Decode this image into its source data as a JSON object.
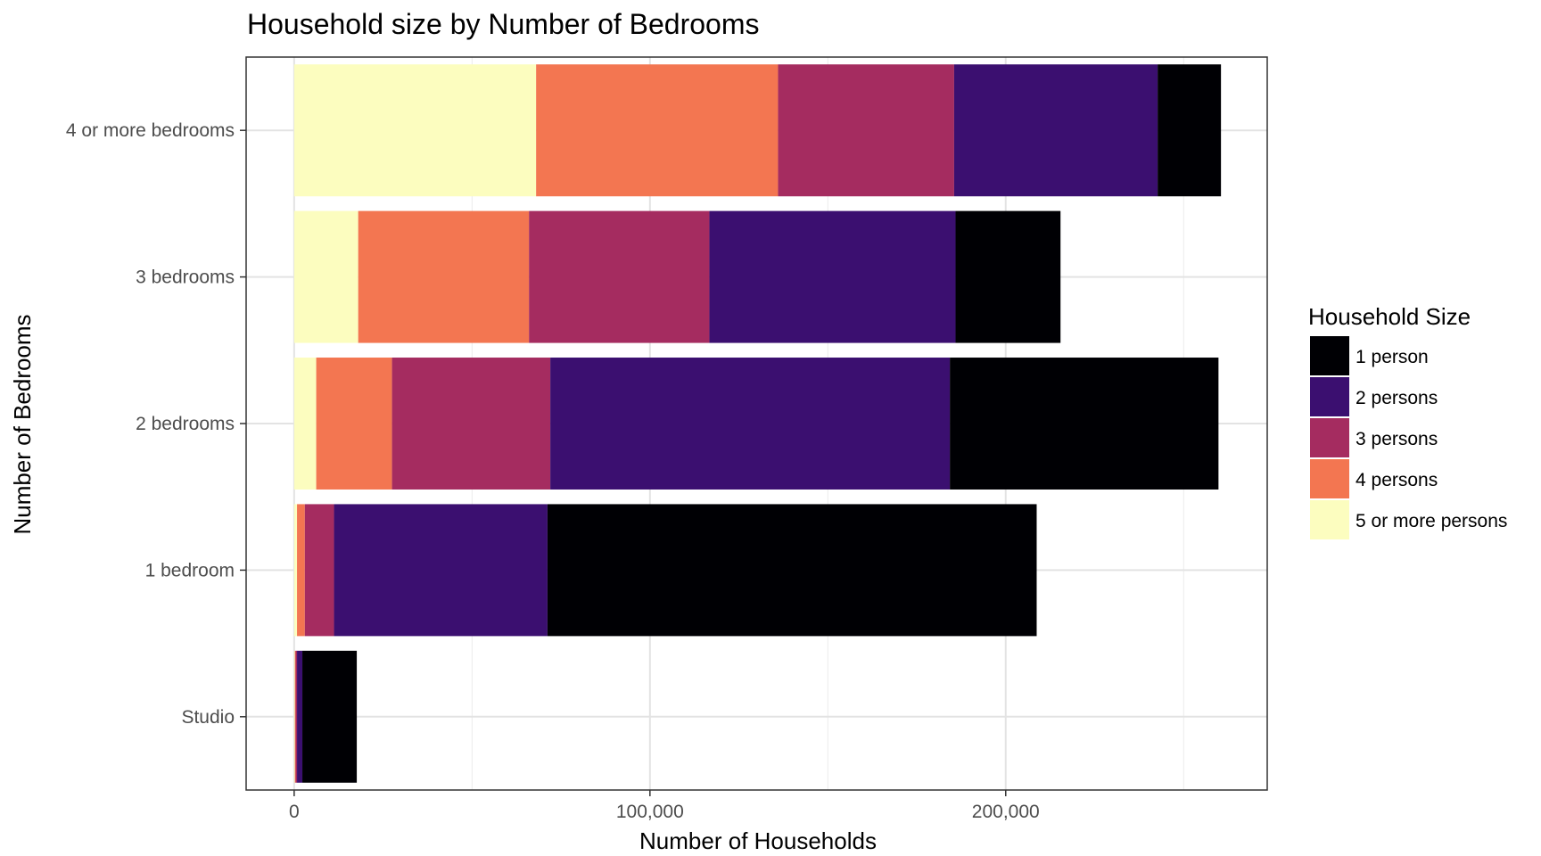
{
  "chart_data": {
    "type": "bar",
    "orientation": "horizontal",
    "stacked": true,
    "title": "Household size by Number of Bedrooms",
    "xlabel": "Number of Households",
    "ylabel": "Number of Bedrooms",
    "xlim": [
      -13500,
      273500
    ],
    "x_ticks": [
      0,
      100000,
      200000
    ],
    "x_tick_labels": [
      "0",
      "100,000",
      "200,000"
    ],
    "categories": [
      "Studio",
      "1 bedroom",
      "2 bedrooms",
      "3 bedrooms",
      "4 or more bedrooms"
    ],
    "series": [
      {
        "name": "1 person",
        "color": "#000004",
        "values": [
          15300,
          137500,
          75500,
          29500,
          17800
        ]
      },
      {
        "name": "2 persons",
        "color": "#3b0f70",
        "values": [
          1500,
          60000,
          112300,
          69200,
          57200
        ]
      },
      {
        "name": "3 persons",
        "color": "#a52c60",
        "values": [
          400,
          8200,
          44500,
          50700,
          49500
        ]
      },
      {
        "name": "4 persons",
        "color": "#f37651",
        "values": [
          200,
          2200,
          21300,
          48000,
          68000
        ]
      },
      {
        "name": "5 or more persons",
        "color": "#fcfdbf",
        "values": [
          200,
          800,
          6200,
          18000,
          68000
        ]
      }
    ],
    "legend": {
      "title": "Household Size",
      "position": "right",
      "order": [
        "1 person",
        "2 persons",
        "3 persons",
        "4 persons",
        "5 or more persons"
      ]
    },
    "grid": true,
    "stack_order": [
      "5 or more persons",
      "4 persons",
      "3 persons",
      "2 persons",
      "1 person"
    ]
  }
}
